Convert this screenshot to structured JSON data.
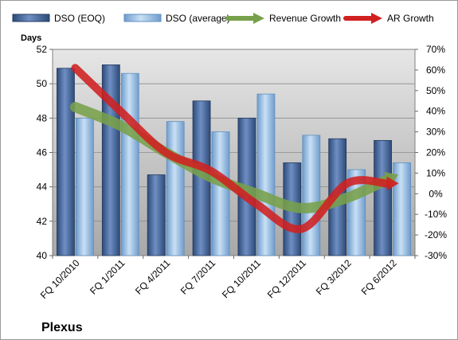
{
  "chart_data": {
    "type": "bar",
    "categories": [
      "FQ 10/2010",
      "FQ 1/2011",
      "FQ 4/2011",
      "FQ 7/2011",
      "FQ 10/2011",
      "FQ 12/2011",
      "FQ 3/2012",
      "FQ 6/2012"
    ],
    "series": [
      {
        "name": "DSO (EOQ)",
        "type": "bar",
        "axis": "left",
        "color": "#4A6BA0",
        "values": [
          50.9,
          51.1,
          44.7,
          49.0,
          48.0,
          45.4,
          46.8,
          46.7
        ]
      },
      {
        "name": "DSO (average)",
        "type": "bar",
        "axis": "left",
        "color": "#9FC3E7",
        "values": [
          48.0,
          50.6,
          47.8,
          47.2,
          49.4,
          47.0,
          45.0,
          45.4
        ]
      },
      {
        "name": "Revenue Growth",
        "type": "line",
        "axis": "right",
        "color": "#77A04A",
        "values": [
          0.42,
          0.33,
          0.2,
          0.08,
          0.0,
          -0.07,
          -0.02,
          0.08
        ]
      },
      {
        "name": "AR Growth",
        "type": "line",
        "axis": "right",
        "color": "#D02020",
        "values": [
          0.61,
          0.4,
          0.2,
          0.11,
          -0.05,
          -0.17,
          0.05,
          0.05
        ]
      }
    ],
    "y_left": {
      "label": "Days",
      "range": [
        40,
        52
      ],
      "ticks": [
        "40",
        "42",
        "44",
        "46",
        "48",
        "50",
        "52"
      ]
    },
    "y_right": {
      "range": [
        -0.3,
        0.7
      ],
      "ticks": [
        "-30%",
        "-20%",
        "-10%",
        "0%",
        "10%",
        "20%",
        "30%",
        "40%",
        "50%",
        "60%",
        "70%"
      ]
    },
    "legend_position": "top",
    "grid": "horizontal"
  },
  "company_label": "Plexus"
}
